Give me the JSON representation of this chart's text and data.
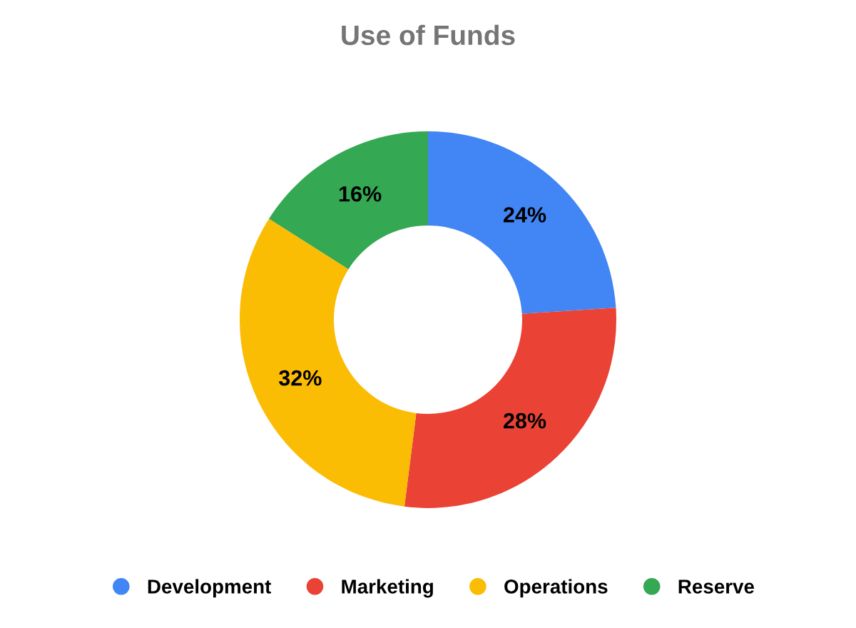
{
  "chart_data": {
    "type": "donut",
    "title": "Use of Funds",
    "categories": [
      "Development",
      "Marketing",
      "Operations",
      "Reserve"
    ],
    "values": [
      24,
      28,
      32,
      16
    ],
    "value_labels": [
      "24%",
      "28%",
      "32%",
      "16%"
    ],
    "colors": [
      "#4285f4",
      "#ea4335",
      "#fbbc04",
      "#34a853"
    ],
    "legend": "bottom"
  }
}
